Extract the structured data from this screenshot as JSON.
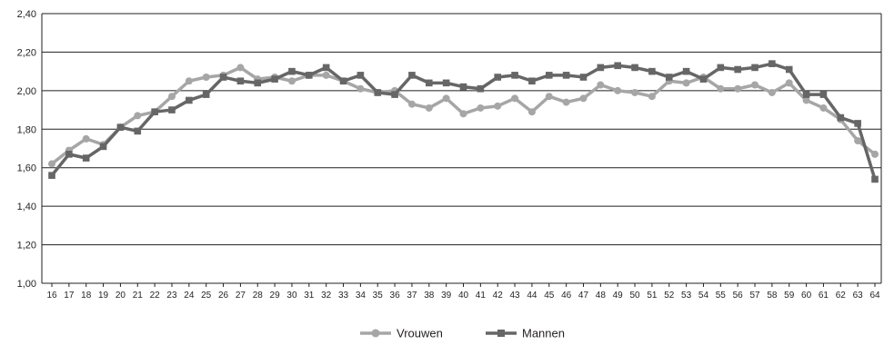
{
  "chart_data": {
    "type": "line",
    "title": "",
    "xlabel": "",
    "ylabel": "",
    "ylim": [
      1.0,
      2.4
    ],
    "y_ticks": [
      "1,00",
      "1,20",
      "1,40",
      "1,60",
      "1,80",
      "2,00",
      "2,20",
      "2,40"
    ],
    "y_tick_values": [
      1.0,
      1.2,
      1.4,
      1.6,
      1.8,
      2.0,
      2.2,
      2.4
    ],
    "grid": "horizontal",
    "legend_position": "bottom",
    "categories": [
      "16",
      "17",
      "18",
      "19",
      "20",
      "21",
      "22",
      "23",
      "24",
      "25",
      "26",
      "27",
      "28",
      "29",
      "30",
      "31",
      "32",
      "33",
      "34",
      "35",
      "36",
      "37",
      "38",
      "39",
      "40",
      "41",
      "42",
      "43",
      "44",
      "45",
      "46",
      "47",
      "48",
      "49",
      "50",
      "51",
      "52",
      "53",
      "54",
      "55",
      "56",
      "57",
      "58",
      "59",
      "60",
      "61",
      "62",
      "63",
      "64"
    ],
    "series": [
      {
        "name": "Vrouwen",
        "color": "#a6a6a6",
        "marker": "circle",
        "values": [
          1.62,
          1.69,
          1.75,
          1.72,
          1.81,
          1.87,
          1.89,
          1.97,
          2.05,
          2.07,
          2.08,
          2.12,
          2.06,
          2.07,
          2.05,
          2.08,
          2.08,
          2.05,
          2.01,
          1.99,
          2.0,
          1.93,
          1.91,
          1.96,
          1.88,
          1.91,
          1.92,
          1.96,
          1.89,
          1.97,
          1.94,
          1.96,
          2.03,
          2.0,
          1.99,
          1.97,
          2.05,
          2.04,
          2.07,
          2.01,
          2.01,
          2.03,
          1.99,
          2.04,
          1.95,
          1.91,
          1.85,
          1.74,
          1.67
        ]
      },
      {
        "name": "Mannen",
        "color": "#666666",
        "marker": "square",
        "values": [
          1.56,
          1.67,
          1.65,
          1.71,
          1.81,
          1.79,
          1.89,
          1.9,
          1.95,
          1.98,
          2.07,
          2.05,
          2.04,
          2.06,
          2.1,
          2.08,
          2.12,
          2.05,
          2.08,
          1.99,
          1.98,
          2.08,
          2.04,
          2.04,
          2.02,
          2.01,
          2.07,
          2.08,
          2.05,
          2.08,
          2.08,
          2.07,
          2.12,
          2.13,
          2.12,
          2.1,
          2.07,
          2.1,
          2.06,
          2.12,
          2.11,
          2.12,
          2.14,
          2.11,
          1.98,
          1.98,
          1.86,
          1.83,
          1.54
        ]
      }
    ]
  }
}
